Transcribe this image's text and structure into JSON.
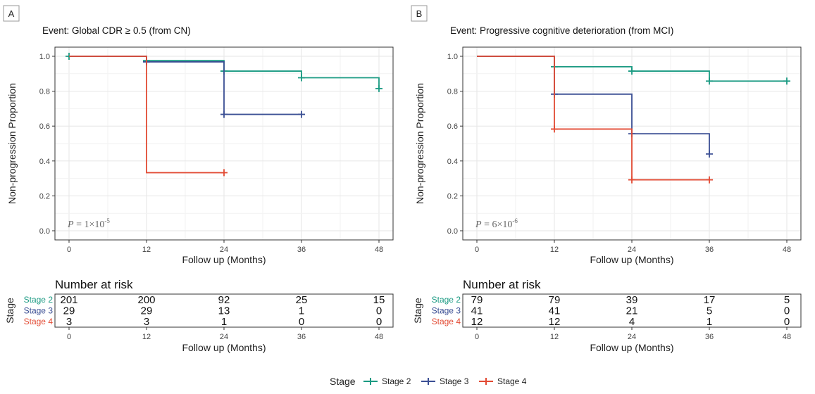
{
  "colors": {
    "stage2": "#1a9a82",
    "stage3": "#3b4f94",
    "stage4": "#e24a33"
  },
  "legend": {
    "title": "Stage",
    "items": [
      {
        "label": "Stage 2",
        "color_key": "stage2"
      },
      {
        "label": "Stage 3",
        "color_key": "stage3"
      },
      {
        "label": "Stage 4",
        "color_key": "stage4"
      }
    ]
  },
  "chart_data": [
    {
      "type": "line",
      "panel_label": "A",
      "title": "Event: Global CDR ≥ 0.5 (from CN)",
      "xlabel": "Follow up (Months)",
      "ylabel": "Non-progression Proportion",
      "xlim": [
        0,
        48
      ],
      "ylim": [
        0,
        1
      ],
      "x_ticks": [
        0,
        12,
        24,
        36,
        48
      ],
      "y_ticks": [
        "0.0",
        "0.2",
        "0.4",
        "0.6",
        "0.8",
        "1.0"
      ],
      "p_value": {
        "base": "P = 1×10",
        "exp": "-5"
      },
      "series": [
        {
          "name": "Stage 2",
          "color_key": "stage2",
          "steps": [
            [
              0,
              1.0
            ],
            [
              12,
              0.975
            ],
            [
              24,
              0.915
            ],
            [
              36,
              0.877
            ],
            [
              48,
              0.815
            ]
          ],
          "censor": [
            [
              0,
              1.0
            ],
            [
              12,
              0.975
            ],
            [
              24,
              0.915
            ],
            [
              36,
              0.877
            ],
            [
              48,
              0.815
            ]
          ]
        },
        {
          "name": "Stage 3",
          "color_key": "stage3",
          "steps": [
            [
              0,
              1.0
            ],
            [
              12,
              0.968
            ],
            [
              24,
              0.667
            ],
            [
              36,
              0.667
            ]
          ],
          "censor": [
            [
              12,
              0.968
            ],
            [
              24,
              0.667
            ],
            [
              36,
              0.667
            ]
          ]
        },
        {
          "name": "Stage 4",
          "color_key": "stage4",
          "steps": [
            [
              0,
              1.0
            ],
            [
              12,
              0.333
            ],
            [
              24,
              0.333
            ]
          ],
          "censor": [
            [
              24,
              0.333
            ]
          ]
        }
      ],
      "risk_table": {
        "title": "Number at risk",
        "ylabel": "Stage",
        "xlabel": "Follow up (Months)",
        "rows": [
          {
            "label": "Stage 2",
            "color_key": "stage2",
            "values": [
              "201",
              "200",
              "92",
              "25",
              "15"
            ]
          },
          {
            "label": "Stage 3",
            "color_key": "stage3",
            "values": [
              "29",
              "29",
              "13",
              "1",
              "0"
            ]
          },
          {
            "label": "Stage 4",
            "color_key": "stage4",
            "values": [
              "3",
              "3",
              "1",
              "0",
              "0"
            ]
          }
        ]
      }
    },
    {
      "type": "line",
      "panel_label": "B",
      "title": "Event: Progressive cognitive deterioration (from MCI)",
      "xlabel": "Follow up (Months)",
      "ylabel": "Non-progression Proportion",
      "xlim": [
        0,
        48
      ],
      "ylim": [
        0,
        1
      ],
      "x_ticks": [
        0,
        12,
        24,
        36,
        48
      ],
      "y_ticks": [
        "0.0",
        "0.2",
        "0.4",
        "0.6",
        "0.8",
        "1.0"
      ],
      "p_value": {
        "base": "P = 6×10",
        "exp": "-6"
      },
      "series": [
        {
          "name": "Stage 2",
          "color_key": "stage2",
          "steps": [
            [
              0,
              1.0
            ],
            [
              12,
              0.94
            ],
            [
              24,
              0.915
            ],
            [
              36,
              0.858
            ],
            [
              48,
              0.858
            ]
          ],
          "censor": [
            [
              12,
              0.94
            ],
            [
              24,
              0.915
            ],
            [
              36,
              0.858
            ],
            [
              48,
              0.858
            ]
          ]
        },
        {
          "name": "Stage 3",
          "color_key": "stage3",
          "steps": [
            [
              0,
              1.0
            ],
            [
              12,
              0.783
            ],
            [
              24,
              0.556
            ],
            [
              36,
              0.44
            ]
          ],
          "censor": [
            [
              12,
              0.783
            ],
            [
              24,
              0.556
            ],
            [
              36,
              0.44
            ]
          ]
        },
        {
          "name": "Stage 4",
          "color_key": "stage4",
          "steps": [
            [
              0,
              1.0
            ],
            [
              12,
              0.583
            ],
            [
              24,
              0.292
            ],
            [
              36,
              0.292
            ]
          ],
          "censor": [
            [
              12,
              0.583
            ],
            [
              24,
              0.292
            ],
            [
              36,
              0.292
            ]
          ]
        }
      ],
      "risk_table": {
        "title": "Number at risk",
        "ylabel": "Stage",
        "xlabel": "Follow up (Months)",
        "rows": [
          {
            "label": "Stage 2",
            "color_key": "stage2",
            "values": [
              "79",
              "79",
              "39",
              "17",
              "5"
            ]
          },
          {
            "label": "Stage 3",
            "color_key": "stage3",
            "values": [
              "41",
              "41",
              "21",
              "5",
              "0"
            ]
          },
          {
            "label": "Stage 4",
            "color_key": "stage4",
            "values": [
              "12",
              "12",
              "4",
              "1",
              "0"
            ]
          }
        ]
      }
    }
  ]
}
